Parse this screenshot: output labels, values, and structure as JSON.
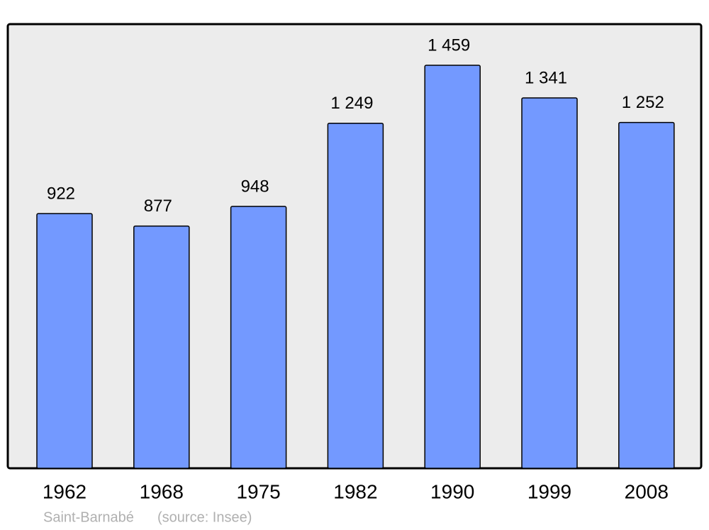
{
  "chart_data": {
    "type": "bar",
    "title": "Saint-Barnabé",
    "source": "(source: Insee)",
    "categories": [
      "1962",
      "1968",
      "1975",
      "1982",
      "1990",
      "1999",
      "2008"
    ],
    "values": [
      922,
      877,
      948,
      1249,
      1459,
      1341,
      1252
    ],
    "value_labels": [
      "922",
      "877",
      "948",
      "1 249",
      "1 459",
      "1 341",
      "1 252"
    ],
    "color": "#7399ff"
  }
}
